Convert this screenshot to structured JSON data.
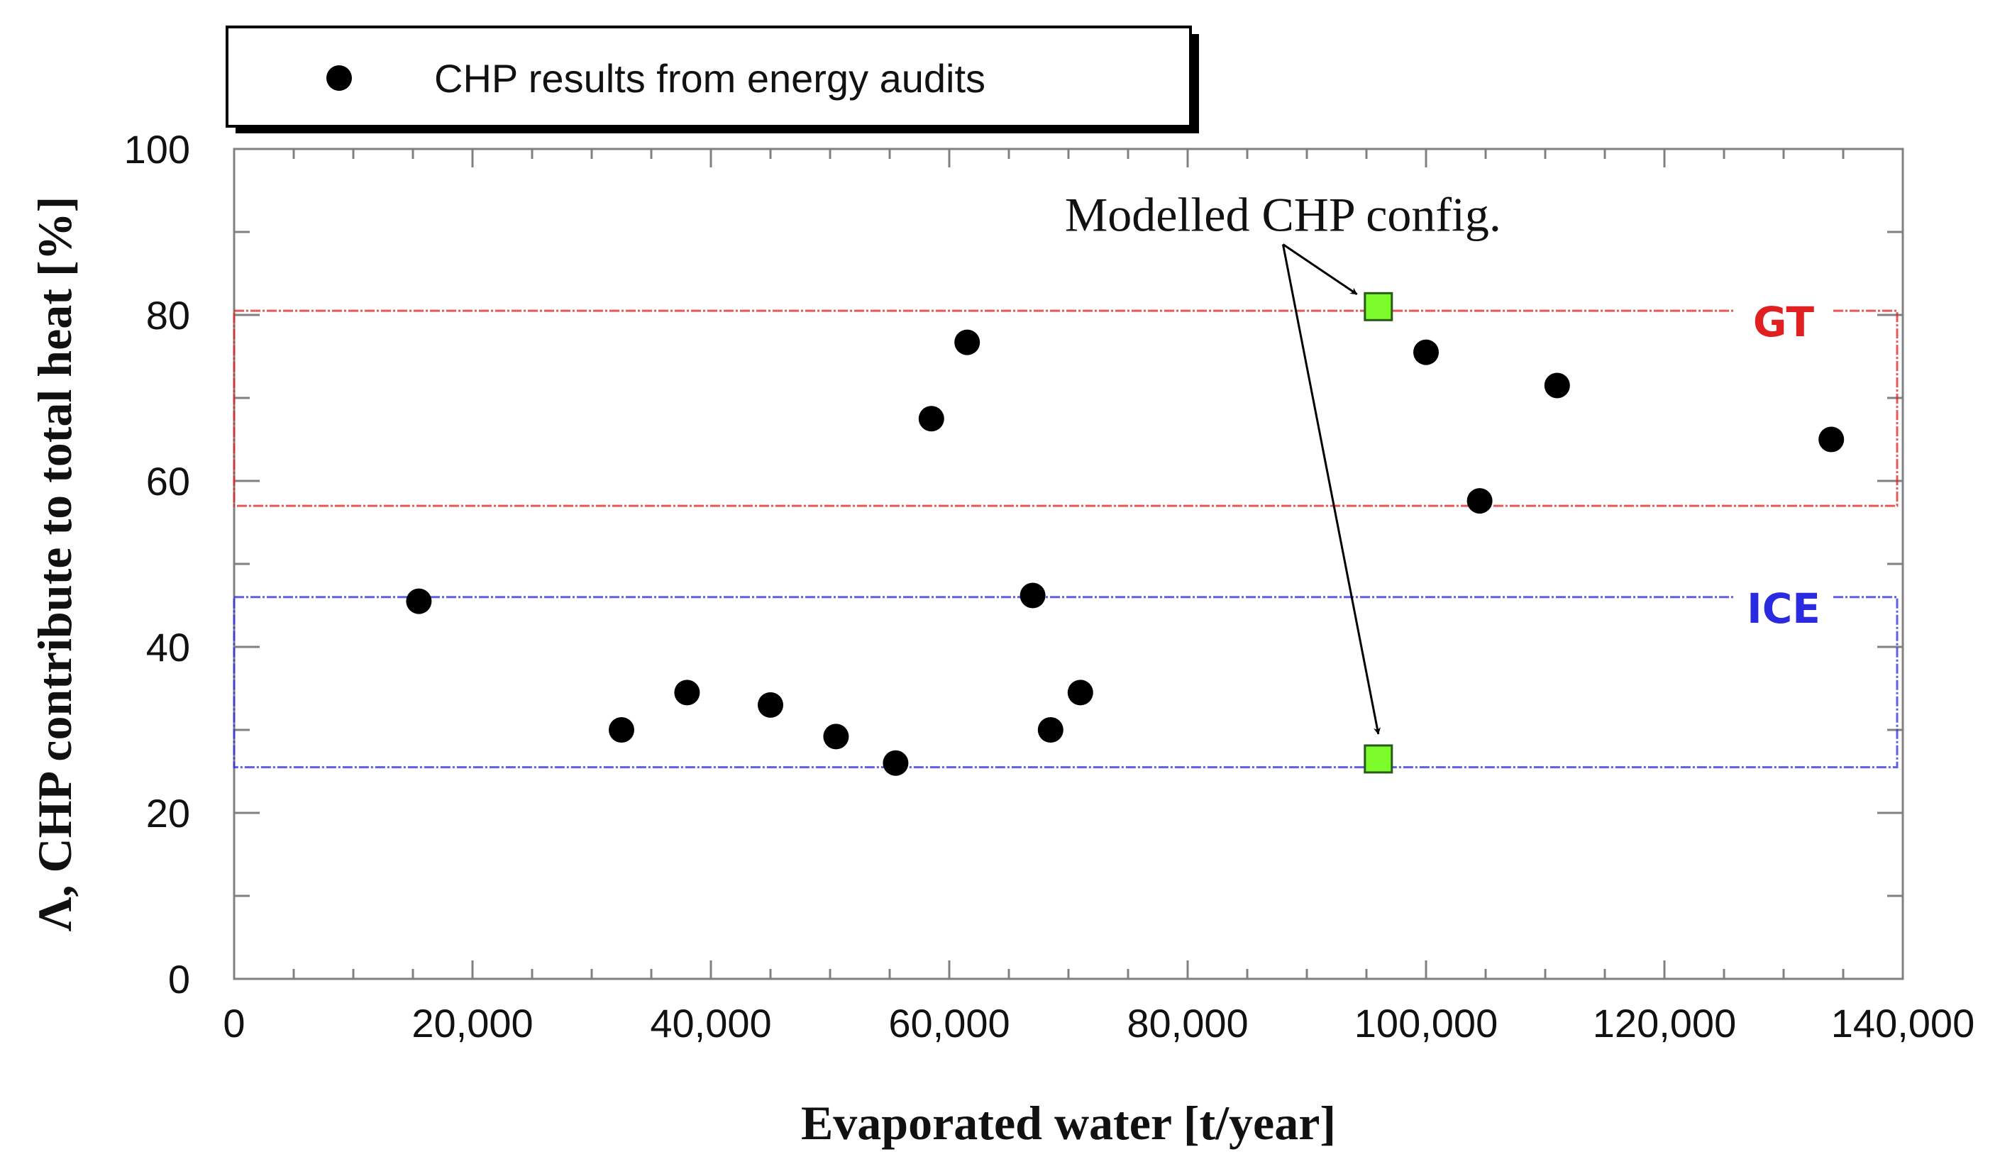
{
  "chart_data": {
    "type": "scatter",
    "title": "",
    "xlabel": "Evaporated water [t/year]",
    "ylabel": "Λ, CHP contribute to total heat [%]",
    "xlim": [
      0,
      140000
    ],
    "ylim": [
      0,
      100
    ],
    "x_ticks": [
      0,
      20000,
      40000,
      60000,
      80000,
      100000,
      120000,
      140000
    ],
    "x_tick_labels": [
      "0",
      "20,000",
      "40,000",
      "60,000",
      "80,000",
      "100,000",
      "120,000",
      "140,000"
    ],
    "x_minor_step": 5000,
    "y_ticks": [
      0,
      20,
      40,
      60,
      80,
      100
    ],
    "y_tick_labels": [
      "0",
      "20",
      "40",
      "60",
      "80",
      "100"
    ],
    "y_minor_step": 10,
    "grid": false,
    "legend": {
      "position": "top-left, outside above plot",
      "entries": [
        {
          "label": "CHP results from energy audits",
          "marker": "black-circle"
        }
      ]
    },
    "series": [
      {
        "name": "CHP results from energy audits",
        "marker": "circle",
        "color": "#000000",
        "points": [
          {
            "x": 15500,
            "y": 45.5
          },
          {
            "x": 32500,
            "y": 30.0
          },
          {
            "x": 38000,
            "y": 34.5
          },
          {
            "x": 45000,
            "y": 33.0
          },
          {
            "x": 50500,
            "y": 29.2
          },
          {
            "x": 55500,
            "y": 26.0
          },
          {
            "x": 58500,
            "y": 67.5
          },
          {
            "x": 61500,
            "y": 76.7
          },
          {
            "x": 67000,
            "y": 46.2
          },
          {
            "x": 68500,
            "y": 30.0
          },
          {
            "x": 71000,
            "y": 34.5
          },
          {
            "x": 100000,
            "y": 75.5
          },
          {
            "x": 104500,
            "y": 57.6
          },
          {
            "x": 111000,
            "y": 71.5
          },
          {
            "x": 134000,
            "y": 65.0
          }
        ]
      },
      {
        "name": "Modelled CHP config.",
        "marker": "square",
        "color": "#7CFC2A",
        "points": [
          {
            "x": 96000,
            "y": 81.0
          },
          {
            "x": 96000,
            "y": 26.5
          }
        ]
      }
    ],
    "bands": [
      {
        "label": "GT",
        "x_range": [
          0,
          140000
        ],
        "y_range": [
          57,
          80.5
        ],
        "color": "#E02020"
      },
      {
        "label": "ICE",
        "x_range": [
          0,
          140000
        ],
        "y_range": [
          25.5,
          46
        ],
        "color": "#2A2AE0"
      }
    ],
    "annotations": [
      {
        "text": "Modelled CHP config.",
        "anchor": {
          "x": 88000,
          "y": 92
        },
        "arrows_to": [
          {
            "from": {
              "x": 88000,
              "y": 88.5
            },
            "to": {
              "x": 94200,
              "y": 82.5
            }
          },
          {
            "from": {
              "x": 88000,
              "y": 88.5
            },
            "to": {
              "x": 96000,
              "y": 29.5
            }
          }
        ]
      }
    ]
  }
}
